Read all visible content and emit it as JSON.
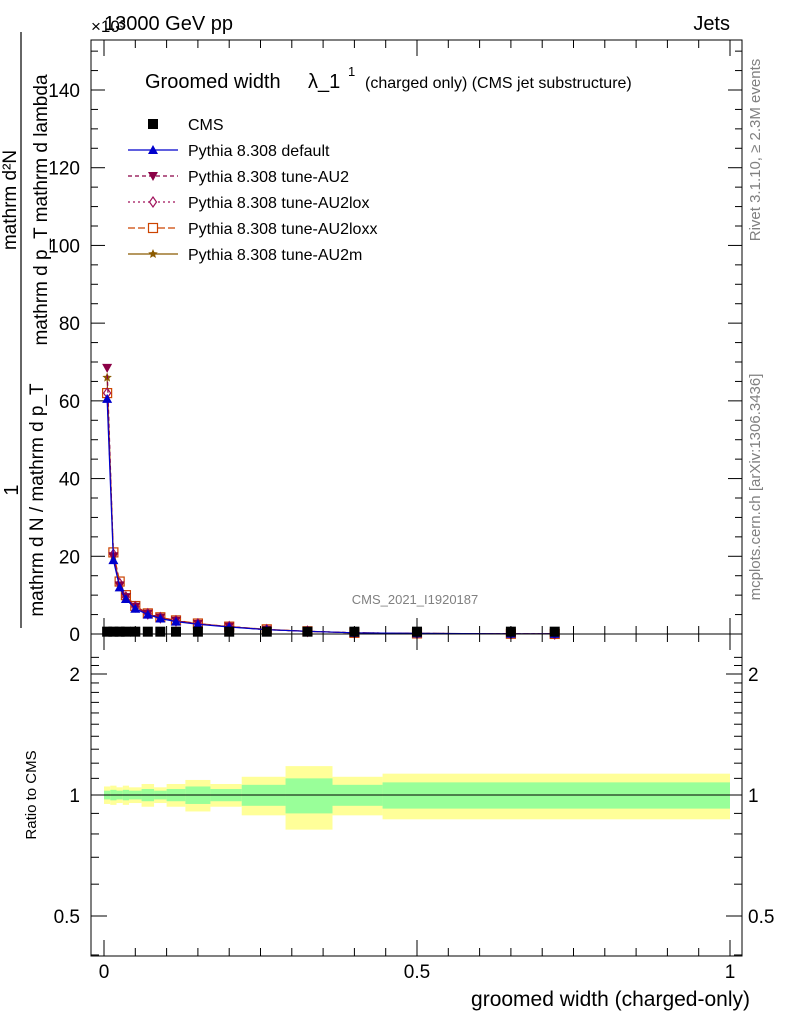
{
  "header": {
    "energy": "13000 GeV pp",
    "group": "Jets",
    "exponent": "×10³"
  },
  "side_text": {
    "rivet": "Rivet 3.1.10, ≥ 2.3M events",
    "mcplots": "mcplots.cern.ch [arXiv:1306.3436]"
  },
  "watermark": "CMS_2021_I1920187",
  "chart_data": [
    {
      "type": "line",
      "title": "Groomed width",
      "title_symbol": "λ_1",
      "title_sup": "1",
      "title_sub": "(charged only) (CMS jet substructure)",
      "ylabel": "1 / mathrm d N / mathrm d p_T mathrm d p_T mathrm d N / mathrm d lambda",
      "ylabel_frac_top": "mathrm d²N",
      "ylabel_frac_top2": "mathrm d p_T mathrm d lambda",
      "ylabel_one": "1",
      "ylabel_frac_bottom": "mathrm d N / mathrm d p_T",
      "xlim": [
        0,
        1
      ],
      "ylim": [
        0,
        155
      ],
      "y_scale_note": "×10³",
      "y_ticks": [
        0,
        20,
        40,
        60,
        80,
        100,
        120,
        140
      ],
      "x": [
        0.005,
        0.015,
        0.025,
        0.035,
        0.05,
        0.07,
        0.09,
        0.115,
        0.15,
        0.2,
        0.26,
        0.325,
        0.4,
        0.5,
        0.65,
        0.72
      ],
      "series": [
        {
          "name": "CMS",
          "color": "#000000",
          "marker": "square",
          "dash": "none",
          "values": [
            0.6,
            0.6,
            0.6,
            0.6,
            0.6,
            0.6,
            0.6,
            0.6,
            0.6,
            0.6,
            0.6,
            0.6,
            0.6,
            0.6,
            0.6,
            0.6
          ]
        },
        {
          "name": "Pythia 8.308 default",
          "color": "#0000cc",
          "marker": "triangle",
          "dash": "none",
          "values": [
            60.5,
            19,
            12,
            9,
            6.5,
            5,
            4,
            3.2,
            2.5,
            1.8,
            1.1,
            0.7,
            0.3,
            0.15,
            0.06,
            0.02
          ]
        },
        {
          "name": "Pythia 8.308 tune-AU2",
          "color": "#8b0046",
          "marker": "triangle-down",
          "dash": "4,3",
          "values": [
            68.5,
            20,
            12.5,
            9.5,
            7,
            5.2,
            4.2,
            3.4,
            2.6,
            1.9,
            1.1,
            0.7,
            0.3,
            0.15,
            0.06,
            0.02
          ]
        },
        {
          "name": "Pythia 8.308 tune-AU2lox",
          "color": "#a0105a",
          "marker": "diamond",
          "dash": "2,3",
          "values": [
            62,
            20.5,
            13,
            9.5,
            7,
            5.2,
            4.2,
            3.4,
            2.6,
            1.9,
            1.1,
            0.7,
            0.3,
            0.15,
            0.06,
            0.02
          ]
        },
        {
          "name": "Pythia 8.308 tune-AU2loxx",
          "color": "#cc4400",
          "marker": "square-open",
          "dash": "7,3",
          "values": [
            62,
            21,
            13.5,
            10,
            7.2,
            5.3,
            4.3,
            3.5,
            2.7,
            1.9,
            1.2,
            0.7,
            0.3,
            0.15,
            0.06,
            0.02
          ]
        },
        {
          "name": "Pythia 8.308 tune-AU2m",
          "color": "#8b5a00",
          "marker": "star",
          "dash": "none",
          "values": [
            66,
            20,
            12.8,
            9.6,
            7,
            5.2,
            4.2,
            3.4,
            2.6,
            1.9,
            1.1,
            0.7,
            0.3,
            0.15,
            0.06,
            0.02
          ]
        }
      ]
    },
    {
      "type": "area",
      "ylabel": "Ratio to CMS",
      "xlabel": "groomed width (charged-only)",
      "xlim": [
        0,
        1
      ],
      "ylim": [
        0.4,
        2.3
      ],
      "y_scale": "log",
      "y_ticks": [
        0.5,
        1,
        2
      ],
      "x_ticks": [
        0,
        0.5,
        1
      ],
      "bins": [
        {
          "x0": 0.0,
          "x1": 0.01,
          "inner": 0.025,
          "outer": 0.05
        },
        {
          "x0": 0.01,
          "x1": 0.02,
          "inner": 0.03,
          "outer": 0.055
        },
        {
          "x0": 0.02,
          "x1": 0.03,
          "inner": 0.025,
          "outer": 0.045
        },
        {
          "x0": 0.03,
          "x1": 0.04,
          "inner": 0.03,
          "outer": 0.055
        },
        {
          "x0": 0.04,
          "x1": 0.06,
          "inner": 0.025,
          "outer": 0.045
        },
        {
          "x0": 0.06,
          "x1": 0.08,
          "inner": 0.035,
          "outer": 0.065
        },
        {
          "x0": 0.08,
          "x1": 0.1,
          "inner": 0.025,
          "outer": 0.045
        },
        {
          "x0": 0.1,
          "x1": 0.13,
          "inner": 0.035,
          "outer": 0.065
        },
        {
          "x0": 0.13,
          "x1": 0.17,
          "inner": 0.05,
          "outer": 0.09
        },
        {
          "x0": 0.17,
          "x1": 0.22,
          "inner": 0.035,
          "outer": 0.065
        },
        {
          "x0": 0.22,
          "x1": 0.29,
          "inner": 0.06,
          "outer": 0.11
        },
        {
          "x0": 0.29,
          "x1": 0.365,
          "inner": 0.1,
          "outer": 0.18
        },
        {
          "x0": 0.365,
          "x1": 0.445,
          "inner": 0.06,
          "outer": 0.11
        },
        {
          "x0": 0.445,
          "x1": 1.0,
          "inner": 0.075,
          "outer": 0.13
        }
      ]
    }
  ]
}
